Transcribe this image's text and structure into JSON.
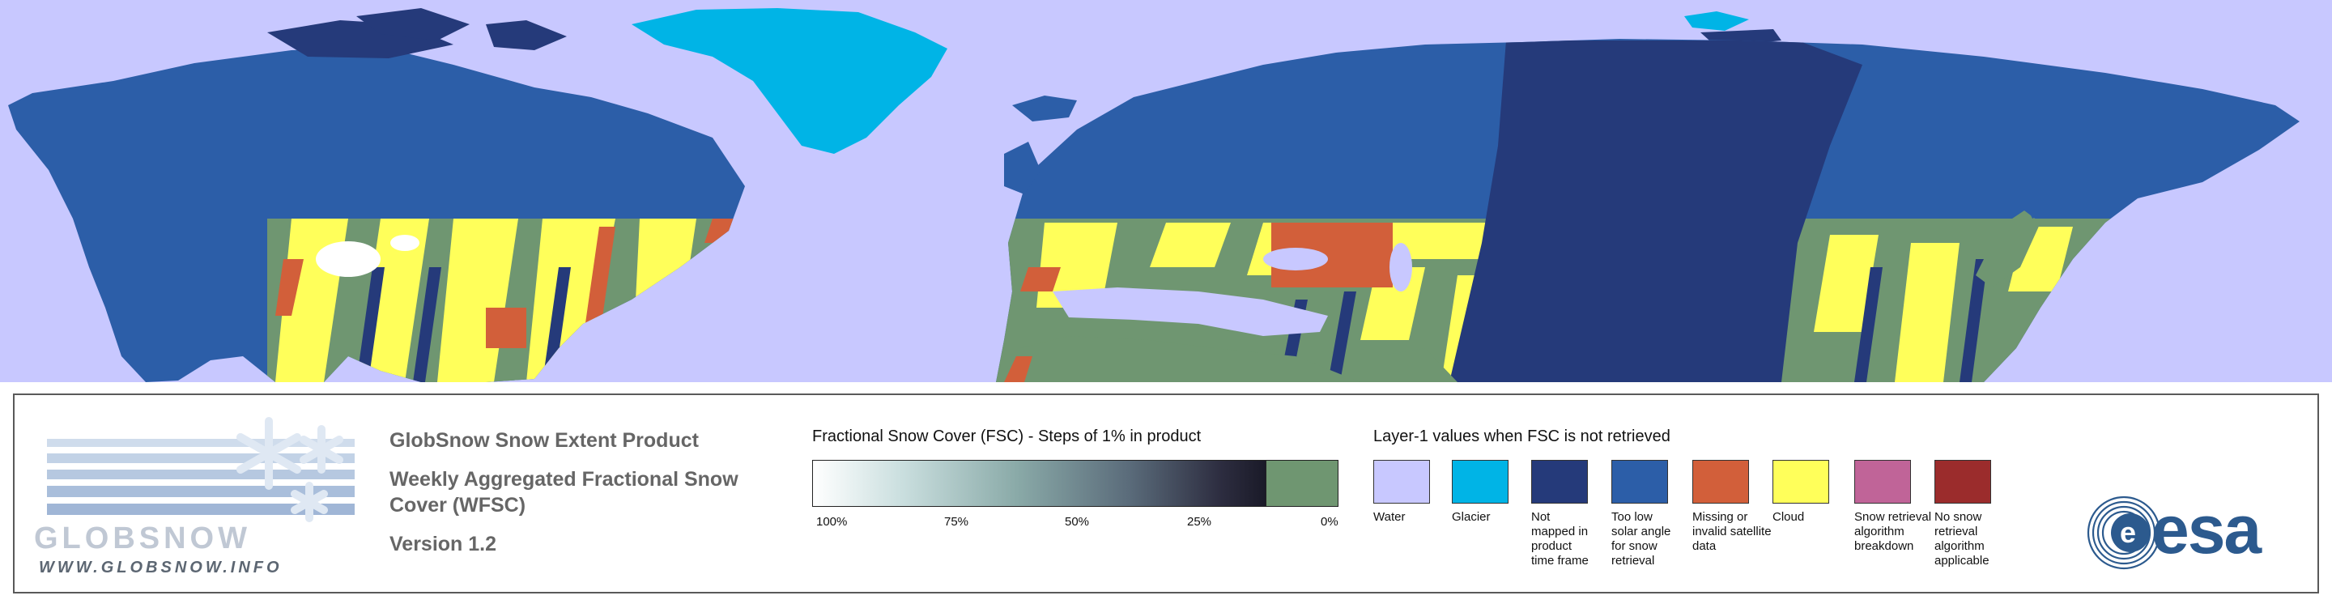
{
  "map": {
    "colors": {
      "water": "#c8c8ff",
      "glacier": "#00b4e6",
      "not_mapped": "#253a7a",
      "low_solar": "#2c5ea8",
      "missing": "#d25f3a",
      "cloud": "#ffff5a",
      "snow_free": "#6f9671",
      "snow": "#ffffff"
    }
  },
  "logo": {
    "wordmark": "GLOBSNOW",
    "url": "WWW.GLOBSNOW.INFO"
  },
  "product": {
    "title": "GlobSnow Snow Extent Product",
    "subtitle_line1": "Weekly Aggregated Fractional Snow",
    "subtitle_line2": "Cover (WFSC)",
    "version": "Version 1.2"
  },
  "fsc_scale": {
    "title": "Fractional Snow Cover (FSC) - Steps of 1% in product",
    "ticks": [
      "100%",
      "75%",
      "50%",
      "25%",
      "0%"
    ],
    "colors": {
      "high": "#ffffff",
      "low": "#1a1a28",
      "zero": "#6f9671"
    }
  },
  "layer1": {
    "title": "Layer-1 values when FSC is not retrieved",
    "items": [
      {
        "id": "water",
        "color": "#c8c8ff",
        "label": [
          "Water"
        ]
      },
      {
        "id": "glacier",
        "color": "#00b4e6",
        "label": [
          "Glacier"
        ]
      },
      {
        "id": "not-mapped",
        "color": "#253a7a",
        "label": [
          "Not",
          "mapped in",
          "product",
          "time frame"
        ]
      },
      {
        "id": "low-solar",
        "color": "#2c5ea8",
        "label": [
          "Too low",
          "solar angle",
          "for snow",
          "retrieval"
        ]
      },
      {
        "id": "missing",
        "color": "#d25f3a",
        "label": [
          "Missing or",
          "invalid satellite",
          "data"
        ]
      },
      {
        "id": "cloud",
        "color": "#ffff5a",
        "label": [
          "Cloud"
        ]
      },
      {
        "id": "breakdown",
        "color": "#c06498",
        "label": [
          "Snow retrieval",
          "algorithm",
          "breakdown"
        ]
      },
      {
        "id": "not-applicable",
        "color": "#9b2c2c",
        "label": [
          "No snow",
          "retrieval",
          "algorithm",
          "applicable"
        ]
      }
    ]
  },
  "esa": {
    "text": "esa",
    "color": "#2c5a8e"
  }
}
